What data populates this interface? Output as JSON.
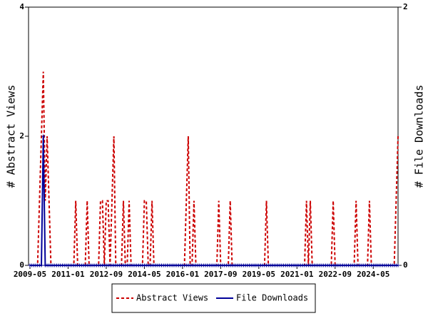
{
  "chart_data": {
    "type": "line",
    "x": [
      "2009-05",
      "2009-06",
      "2009-07",
      "2009-08",
      "2009-09",
      "2009-10",
      "2009-11",
      "2009-12",
      "2010-01",
      "2010-02",
      "2010-03",
      "2010-04",
      "2010-05",
      "2010-06",
      "2010-07",
      "2010-08",
      "2010-09",
      "2010-10",
      "2010-11",
      "2010-12",
      "2011-01",
      "2011-02",
      "2011-03",
      "2011-04",
      "2011-05",
      "2011-06",
      "2011-07",
      "2011-08",
      "2011-09",
      "2011-10",
      "2011-11",
      "2011-12",
      "2012-01",
      "2012-02",
      "2012-03",
      "2012-04",
      "2012-05",
      "2012-06",
      "2012-07",
      "2012-08",
      "2012-09",
      "2012-10",
      "2012-11",
      "2012-12",
      "2013-01",
      "2013-02",
      "2013-03",
      "2013-04",
      "2013-05",
      "2013-06",
      "2013-07",
      "2013-08",
      "2013-09",
      "2013-10",
      "2013-11",
      "2013-12",
      "2014-01",
      "2014-02",
      "2014-03",
      "2014-04",
      "2014-05",
      "2014-06",
      "2014-07",
      "2014-08",
      "2014-09",
      "2014-10",
      "2014-11",
      "2014-12",
      "2015-01",
      "2015-02",
      "2015-03",
      "2015-04",
      "2015-05",
      "2015-06",
      "2015-07",
      "2015-08",
      "2015-09",
      "2015-10",
      "2015-11",
      "2015-12",
      "2016-01",
      "2016-02",
      "2016-03",
      "2016-04",
      "2016-05",
      "2016-06",
      "2016-07",
      "2016-08",
      "2016-09",
      "2016-10",
      "2016-11",
      "2016-12",
      "2017-01",
      "2017-02",
      "2017-03",
      "2017-04",
      "2017-05",
      "2017-06",
      "2017-07",
      "2017-08",
      "2017-09",
      "2017-10",
      "2017-11",
      "2017-12",
      "2018-01",
      "2018-02",
      "2018-03",
      "2018-04",
      "2018-05",
      "2018-06",
      "2018-07",
      "2018-08",
      "2018-09",
      "2018-10",
      "2018-11",
      "2018-12",
      "2019-01",
      "2019-02",
      "2019-03",
      "2019-04",
      "2019-05",
      "2019-06",
      "2019-07",
      "2019-08",
      "2019-09",
      "2019-10",
      "2019-11",
      "2019-12",
      "2020-01",
      "2020-02",
      "2020-03",
      "2020-04",
      "2020-05",
      "2020-06",
      "2020-07",
      "2020-08",
      "2020-09",
      "2020-10",
      "2020-11",
      "2020-12",
      "2021-01",
      "2021-02",
      "2021-03",
      "2021-04",
      "2021-05",
      "2021-06",
      "2021-07",
      "2021-08",
      "2021-09",
      "2021-10",
      "2021-11",
      "2021-12",
      "2022-01",
      "2022-02",
      "2022-03",
      "2022-04",
      "2022-05",
      "2022-06",
      "2022-07",
      "2022-08",
      "2022-09",
      "2022-10",
      "2022-11",
      "2022-12",
      "2023-01",
      "2023-02",
      "2023-03",
      "2023-04",
      "2023-05",
      "2023-06",
      "2023-07",
      "2023-08",
      "2023-09",
      "2023-10",
      "2023-11",
      "2023-12",
      "2024-01",
      "2024-02",
      "2024-03",
      "2024-04",
      "2024-05",
      "2024-06",
      "2024-07",
      "2024-08",
      "2024-09",
      "2024-10",
      "2024-11",
      "2024-12",
      "2025-01",
      "2025-02",
      "2025-03",
      "2025-04",
      "2025-05",
      "2025-06"
    ],
    "xlim": [
      "2009-05",
      "2025-06"
    ],
    "xticks": [
      "2009-05",
      "2011-01",
      "2012-09",
      "2014-05",
      "2016-01",
      "2017-09",
      "2019-05",
      "2021-01",
      "2022-09",
      "2024-05"
    ],
    "ylabel": "# Abstract Views",
    "ylim": [
      0,
      4
    ],
    "yticks": [
      0,
      2,
      4
    ],
    "y2label": "# File Downloads",
    "y2lim": [
      0,
      2
    ],
    "y2ticks": [
      0,
      2
    ],
    "legend": "bottom",
    "series": [
      {
        "name": "Abstract Views",
        "color": "#cc0000",
        "style": "dashed",
        "values": [
          0,
          0,
          0,
          0,
          0,
          1,
          2,
          3,
          1,
          2,
          1,
          0,
          0,
          0,
          0,
          0,
          0,
          0,
          0,
          0,
          0,
          0,
          0,
          0,
          1,
          0,
          0,
          0,
          0,
          0,
          1,
          0,
          0,
          0,
          0,
          0,
          0,
          1,
          1,
          0,
          1,
          1,
          0,
          1,
          2,
          0,
          0,
          0,
          0,
          1,
          0,
          0,
          1,
          0,
          0,
          0,
          0,
          0,
          0,
          0,
          1,
          1,
          0,
          0,
          1,
          0,
          0,
          0,
          0,
          0,
          0,
          0,
          0,
          0,
          0,
          0,
          0,
          0,
          0,
          0,
          0,
          0,
          1,
          2,
          0,
          0,
          1,
          0,
          0,
          0,
          0,
          0,
          0,
          0,
          0,
          0,
          0,
          0,
          0,
          1,
          0,
          0,
          0,
          0,
          0,
          1,
          0,
          0,
          0,
          0,
          0,
          0,
          0,
          0,
          0,
          0,
          0,
          0,
          0,
          0,
          0,
          0,
          0,
          0,
          1,
          0,
          0,
          0,
          0,
          0,
          0,
          0,
          0,
          0,
          0,
          0,
          0,
          0,
          0,
          0,
          0,
          0,
          0,
          0,
          0,
          1,
          0,
          1,
          0,
          0,
          0,
          0,
          0,
          0,
          0,
          0,
          0,
          0,
          0,
          1,
          0,
          0,
          0,
          0,
          0,
          0,
          0,
          0,
          0,
          0,
          0,
          1,
          0,
          0,
          0,
          0,
          0,
          0,
          1,
          0,
          0,
          0,
          0,
          0,
          0,
          0,
          0,
          0,
          0,
          0,
          0,
          0,
          1,
          2
        ]
      },
      {
        "name": "File Downloads",
        "color": "#000099",
        "style": "solid",
        "axis": "y2",
        "values": [
          0,
          0,
          0,
          0,
          0,
          0,
          0,
          1,
          0,
          0,
          0,
          0,
          0,
          0,
          0,
          0,
          0,
          0,
          0,
          0,
          0,
          0,
          0,
          0,
          0,
          0,
          0,
          0,
          0,
          0,
          0,
          0,
          0,
          0,
          0,
          0,
          0,
          0,
          0,
          0,
          0,
          0,
          0,
          0,
          0,
          0,
          0,
          0,
          0,
          0,
          0,
          0,
          0,
          0,
          0,
          0,
          0,
          0,
          0,
          0,
          0,
          0,
          0,
          0,
          0,
          0,
          0,
          0,
          0,
          0,
          0,
          0,
          0,
          0,
          0,
          0,
          0,
          0,
          0,
          0,
          0,
          0,
          0,
          0,
          0,
          0,
          0,
          0,
          0,
          0,
          0,
          0,
          0,
          0,
          0,
          0,
          0,
          0,
          0,
          0,
          0,
          0,
          0,
          0,
          0,
          0,
          0,
          0,
          0,
          0,
          0,
          0,
          0,
          0,
          0,
          0,
          0,
          0,
          0,
          0,
          0,
          0,
          0,
          0,
          0,
          0,
          0,
          0,
          0,
          0,
          0,
          0,
          0,
          0,
          0,
          0,
          0,
          0,
          0,
          0,
          0,
          0,
          0,
          0,
          0,
          0,
          0,
          0,
          0,
          0,
          0,
          0,
          0,
          0,
          0,
          0,
          0,
          0,
          0,
          0,
          0,
          0,
          0,
          0,
          0,
          0,
          0,
          0,
          0,
          0,
          0,
          0,
          0,
          0,
          0,
          0,
          0,
          0,
          0,
          0,
          0,
          0,
          0,
          0,
          0,
          0,
          0,
          0,
          0,
          0,
          0,
          0,
          0,
          0
        ]
      }
    ]
  }
}
